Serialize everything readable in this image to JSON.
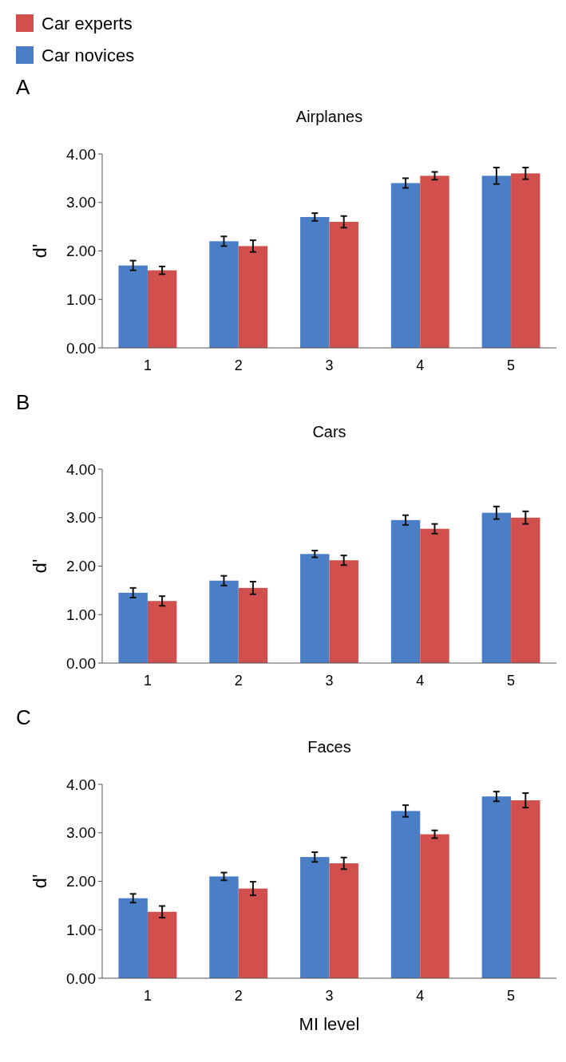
{
  "chart_data": [
    {
      "type": "bar",
      "title": "Airplanes",
      "annotations": [
        "A"
      ],
      "ylabel": "d'",
      "categories": [
        "1",
        "2",
        "3",
        "4",
        "5"
      ],
      "ylim": [
        0,
        4
      ],
      "yticks": [
        {
          "value": 0,
          "label": "0.00"
        },
        {
          "value": 1,
          "label": "1.00"
        },
        {
          "value": 2,
          "label": "2.00"
        },
        {
          "value": 3,
          "label": "3.00"
        },
        {
          "value": 4,
          "label": "4.00"
        }
      ],
      "legend": "top left",
      "grid": false,
      "series": [
        {
          "name": "Car novices",
          "color": "#4a7fc7",
          "values": [
            1.7,
            2.2,
            2.7,
            3.4,
            3.55
          ],
          "errors": [
            0.1,
            0.1,
            0.08,
            0.1,
            0.17
          ]
        },
        {
          "name": "Car experts",
          "color": "#d1504d",
          "values": [
            1.6,
            2.1,
            2.6,
            3.55,
            3.6
          ],
          "errors": [
            0.08,
            0.12,
            0.12,
            0.08,
            0.12
          ]
        }
      ]
    },
    {
      "type": "bar",
      "title": "Cars",
      "annotations": [
        "B"
      ],
      "ylabel": "d'",
      "categories": [
        "1",
        "2",
        "3",
        "4",
        "5"
      ],
      "ylim": [
        0,
        4
      ],
      "yticks": [
        {
          "value": 0,
          "label": "0.00"
        },
        {
          "value": 1,
          "label": "1.00"
        },
        {
          "value": 2,
          "label": "2.00"
        },
        {
          "value": 3,
          "label": "3.00"
        },
        {
          "value": 4,
          "label": "4.00"
        }
      ],
      "grid": false,
      "series": [
        {
          "color": "#4a7fc7",
          "values": [
            1.45,
            1.7,
            2.25,
            2.95,
            3.1
          ],
          "errors": [
            0.1,
            0.1,
            0.07,
            0.1,
            0.13
          ]
        },
        {
          "color": "#d1504d",
          "values": [
            1.28,
            1.55,
            2.12,
            2.77,
            3.0
          ],
          "errors": [
            0.1,
            0.13,
            0.1,
            0.1,
            0.13
          ]
        }
      ]
    },
    {
      "type": "bar",
      "title": "Faces",
      "annotations": [
        "C"
      ],
      "ylabel": "d'",
      "xlabel": "MI level",
      "categories": [
        "1",
        "2",
        "3",
        "4",
        "5"
      ],
      "ylim": [
        0,
        4
      ],
      "yticks": [
        {
          "value": 0,
          "label": "0.00"
        },
        {
          "value": 1,
          "label": "1.00"
        },
        {
          "value": 2,
          "label": "2.00"
        },
        {
          "value": 3,
          "label": "3.00"
        },
        {
          "value": 4,
          "label": "4.00"
        }
      ],
      "grid": false,
      "series": [
        {
          "color": "#4a7fc7",
          "values": [
            1.65,
            2.1,
            2.5,
            3.45,
            3.75
          ],
          "errors": [
            0.09,
            0.08,
            0.1,
            0.12,
            0.1
          ]
        },
        {
          "color": "#d1504d",
          "values": [
            1.37,
            1.85,
            2.37,
            2.97,
            3.67
          ],
          "errors": [
            0.12,
            0.14,
            0.12,
            0.08,
            0.15
          ]
        }
      ]
    }
  ]
}
